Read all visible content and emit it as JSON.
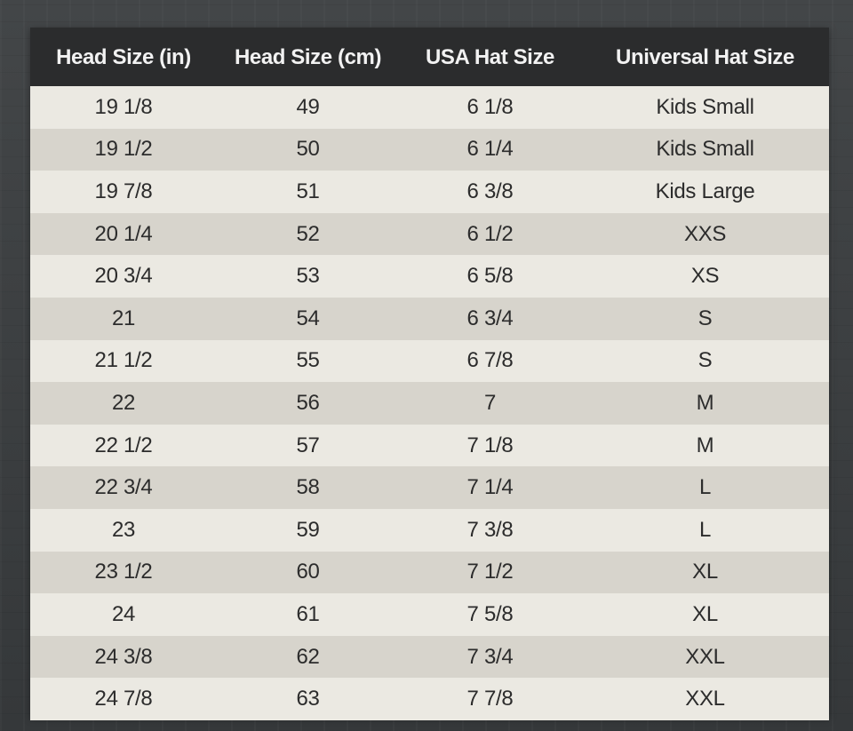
{
  "table": {
    "headers": [
      "Head Size (in)",
      "Head Size (cm)",
      "USA Hat Size",
      "Universal Hat Size"
    ],
    "rows": [
      [
        "19 1/8",
        "49",
        "6 1/8",
        "Kids Small"
      ],
      [
        "19 1/2",
        "50",
        "6 1/4",
        "Kids Small"
      ],
      [
        "19 7/8",
        "51",
        "6 3/8",
        "Kids Large"
      ],
      [
        "20 1/4",
        "52",
        "6 1/2",
        "XXS"
      ],
      [
        "20 3/4",
        "53",
        "6 5/8",
        "XS"
      ],
      [
        "21",
        "54",
        "6 3/4",
        "S"
      ],
      [
        "21 1/2",
        "55",
        "6 7/8",
        "S"
      ],
      [
        "22",
        "56",
        "7",
        "M"
      ],
      [
        "22 1/2",
        "57",
        "7 1/8",
        "M"
      ],
      [
        "22 3/4",
        "58",
        "7 1/4",
        "L"
      ],
      [
        "23",
        "59",
        "7 3/8",
        "L"
      ],
      [
        "23 1/2",
        "60",
        "7 1/2",
        "XL"
      ],
      [
        "24",
        "61",
        "7 5/8",
        "XL"
      ],
      [
        "24 3/8",
        "62",
        "7 3/4",
        "XXL"
      ],
      [
        "24 7/8",
        "63",
        "7 7/8",
        "XXL"
      ]
    ]
  },
  "colors": {
    "header_bg": "#2b2c2d",
    "header_text": "#f2f2f2",
    "row_light": "#ebe9e2",
    "row_dark": "#d7d4cc",
    "cell_text": "#2c2c2c",
    "background": "#3a3d3f"
  }
}
